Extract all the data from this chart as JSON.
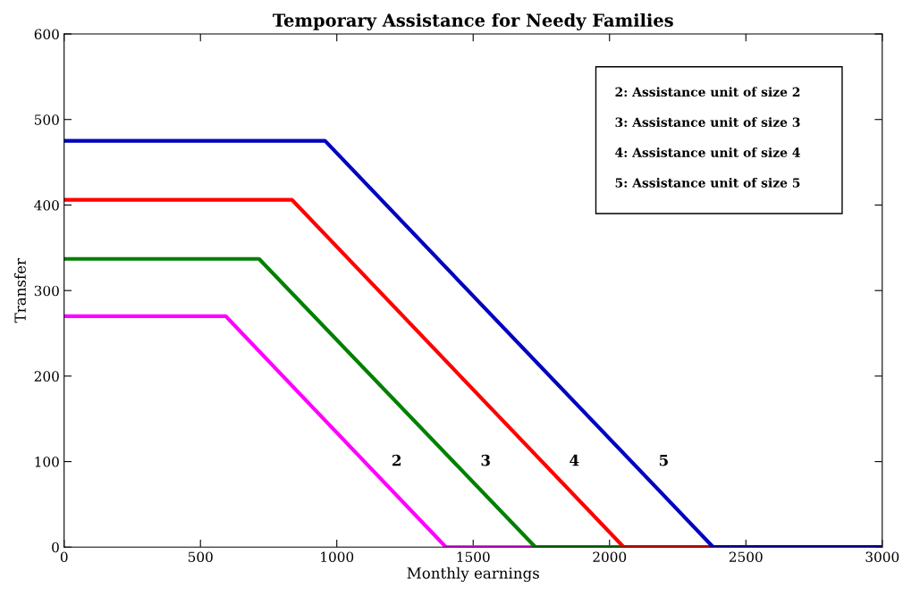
{
  "chart_data": {
    "type": "line",
    "title": "Temporary Assistance for Needy Families",
    "xlabel": "Monthly earnings",
    "ylabel": "Transfer",
    "xlim": [
      0,
      3000
    ],
    "xticks": [
      0,
      500,
      1000,
      1500,
      2000,
      2500,
      3000
    ],
    "ylim": [
      0,
      600
    ],
    "yticks": [
      0,
      100,
      200,
      300,
      400,
      500,
      600
    ],
    "grid": false,
    "marker": "none",
    "line_style": "solid",
    "series": [
      {
        "name": "2",
        "color": "#ff00ff",
        "x": [
          0,
          593,
          1400,
          3000
        ],
        "values": [
          270,
          270,
          0,
          0
        ]
      },
      {
        "name": "3",
        "color": "#008000",
        "x": [
          0,
          715,
          1728,
          3000
        ],
        "values": [
          337,
          337,
          0,
          0
        ]
      },
      {
        "name": "4",
        "color": "#ff0000",
        "x": [
          0,
          836,
          2052,
          3000
        ],
        "values": [
          406,
          406,
          0,
          0
        ]
      },
      {
        "name": "5",
        "color": "#0000c0",
        "x": [
          0,
          957,
          2380,
          3000
        ],
        "values": [
          475,
          475,
          0,
          0
        ]
      }
    ],
    "annotations": [
      "2: Assistance unit of size 2",
      "3: Assistance unit of size 3",
      "4: Assistance unit of size 4",
      "5: Assistance unit of size 5"
    ]
  }
}
